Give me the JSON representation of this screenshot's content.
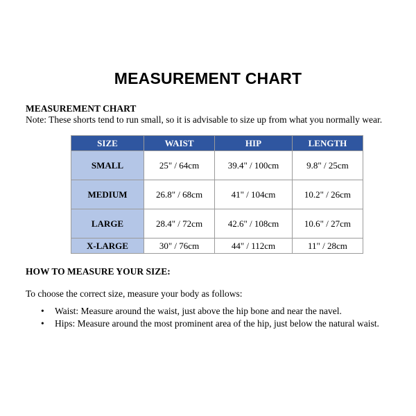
{
  "title": "MEASUREMENT CHART",
  "subheading": "MEASUREMENT CHART",
  "note": "Note: These shorts tend to run small, so it is advisable to size up from what you normally wear.",
  "table": {
    "headers": [
      "SIZE",
      "WAIST",
      "HIP",
      "LENGTH"
    ],
    "rows": [
      [
        "SMALL",
        "25\" / 64cm",
        "39.4\" / 100cm",
        "9.8\" / 25cm"
      ],
      [
        "MEDIUM",
        "26.8\" / 68cm",
        "41\" / 104cm",
        "10.2\" / 26cm"
      ],
      [
        "LARGE",
        "28.4\" / 72cm",
        "42.6\" / 108cm",
        "10.6\" / 27cm"
      ],
      [
        "X-LARGE",
        "30\" / 76cm",
        "44\" / 112cm",
        "11\" / 28cm"
      ]
    ],
    "header_color": "#2f56a0",
    "size_column_color": "#b4c6e7"
  },
  "how_to": {
    "heading": "HOW TO MEASURE YOUR SIZE:",
    "intro": "To choose the correct size, measure your body as follows:",
    "bullet": "•",
    "items": [
      "Waist: Measure around the waist, just above the hip bone and near the navel.",
      "Hips: Measure around the most prominent area of the hip, just below the natural waist."
    ]
  }
}
